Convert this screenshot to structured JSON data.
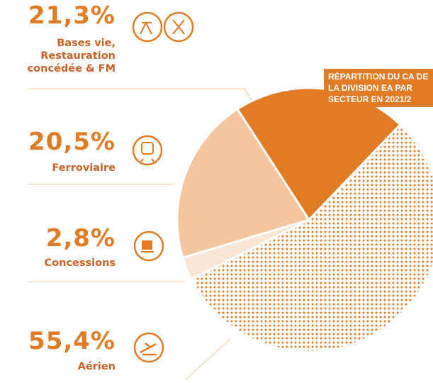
{
  "chart_data": {
    "type": "pie",
    "title": "RÉPARTITION DU CA DE LA DIVISION EA PAR SECTEUR EN 2021/2",
    "categories": [
      "Bases vie, Restauration concédée & FM",
      "Ferroviaire",
      "Concessions",
      "Aérien"
    ],
    "values": [
      21.3,
      20.5,
      2.8,
      55.4
    ],
    "value_labels": [
      "21,3%",
      "20,5%",
      "2,8%",
      "55,4%"
    ],
    "colors": [
      "#e07b26",
      "#f4c6a0",
      "#fbe6d5",
      "#e07b26"
    ],
    "patterns": [
      null,
      null,
      null,
      "dots"
    ]
  }
}
